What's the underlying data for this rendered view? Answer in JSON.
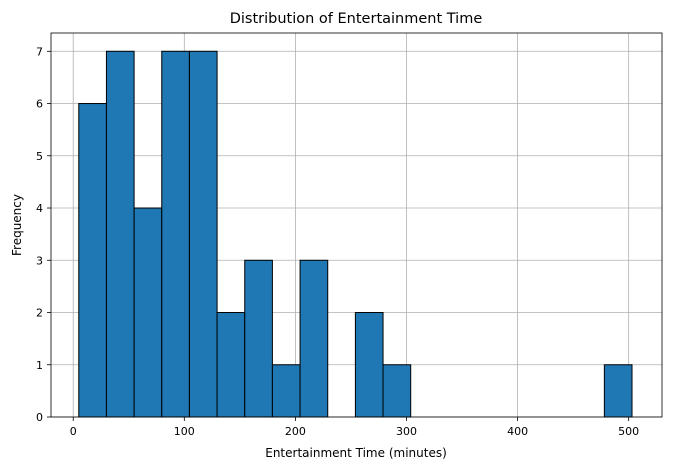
{
  "chart_data": {
    "type": "bar",
    "title": "Distribution of Entertainment Time",
    "xlabel": "Entertainment Time (minutes)",
    "ylabel": "Frequency",
    "xlim": [
      -20,
      530
    ],
    "ylim": [
      0,
      7.35
    ],
    "x_ticks": [
      0,
      100,
      200,
      300,
      400,
      500
    ],
    "y_ticks": [
      0,
      1,
      2,
      3,
      4,
      5,
      6,
      7
    ],
    "grid": true,
    "bar_color": "#1f77b4",
    "edge_color": "#000000",
    "bin_edges": [
      5,
      29.9,
      54.8,
      79.7,
      104.6,
      129.5,
      154.4,
      179.3,
      204.2,
      229.1,
      254,
      278.9,
      303.8,
      328.7,
      353.6,
      378.5,
      403.4,
      428.3,
      453.2,
      478.1,
      503
    ],
    "values": [
      6,
      7,
      4,
      7,
      7,
      2,
      3,
      1,
      3,
      0,
      2,
      1,
      0,
      0,
      0,
      0,
      0,
      0,
      0,
      1
    ]
  }
}
